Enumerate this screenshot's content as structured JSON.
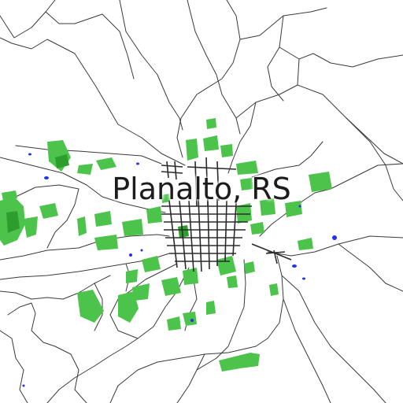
{
  "map": {
    "place_label": "Planalto, RS",
    "colors": {
      "background": "#ffffff",
      "roads": "#3a3a3a",
      "urban_streets": "#2b2b2b",
      "vegetation": "#4cc44c",
      "water": "#2233ee"
    }
  }
}
